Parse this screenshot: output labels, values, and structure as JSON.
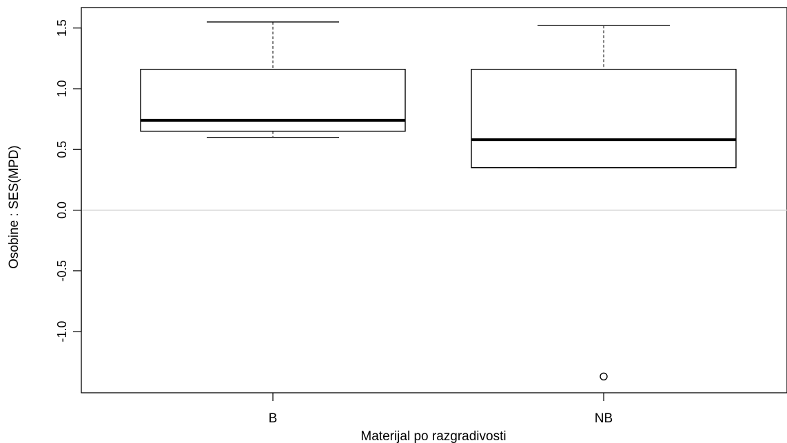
{
  "chart_data": {
    "type": "boxplot",
    "xlabel": "Materijal po razgradivosti",
    "ylabel": "Osobine : SES(MPD)",
    "ylim": [
      -1.5,
      1.65
    ],
    "yticks": [
      1.5,
      1.0,
      0.5,
      0.0,
      -0.5,
      -1.0
    ],
    "ytick_labels": [
      "1.5",
      "1.0",
      "0.5",
      "0.0",
      "-0.5",
      "-1.0"
    ],
    "reference_line": {
      "y": 0.0,
      "color": "#d3d3d3"
    },
    "categories": [
      "B",
      "NB"
    ],
    "boxes": [
      {
        "name": "B",
        "whisker_low": 0.6,
        "q1": 0.65,
        "median": 0.74,
        "q3": 1.16,
        "whisker_high": 1.55,
        "outliers": []
      },
      {
        "name": "NB",
        "whisker_low": 0.35,
        "q1": 0.35,
        "median": 0.58,
        "q3": 1.16,
        "whisker_high": 1.52,
        "outliers": [
          -1.37
        ]
      }
    ],
    "grid": false,
    "legend": "none"
  }
}
